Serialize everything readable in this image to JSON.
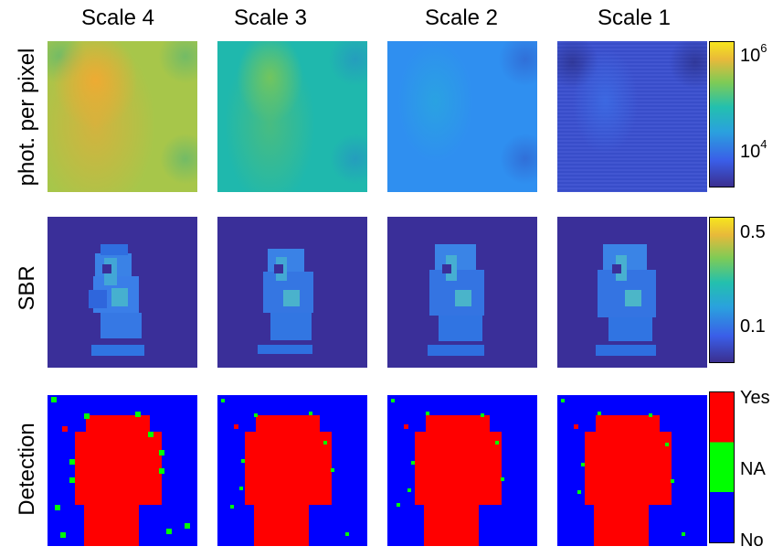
{
  "columns": [
    "Scale 4",
    "Scale 3",
    "Scale 2",
    "Scale 1"
  ],
  "rows": [
    "phot. per pixel",
    "SBR",
    "Detection"
  ],
  "colorbars": {
    "photons": {
      "scale": "log",
      "tick_top_base": "10",
      "tick_top_exp": "6",
      "tick_mid_base": "10",
      "tick_mid_exp": "4"
    },
    "sbr": {
      "tick_top": "0.5",
      "tick_bottom": "0.1"
    },
    "detection": {
      "categories": [
        "Yes",
        "NA",
        "No"
      ],
      "colors": [
        "#ff0000",
        "#00ff00",
        "#0000ff"
      ]
    }
  },
  "colors": {
    "photons_scale": [
      "#3b2f8f",
      "#3a5ee8",
      "#2aa1de",
      "#23c0ae",
      "#7ecb56",
      "#e8b93a",
      "#f7e51d"
    ],
    "sbr_background": "#3a2f99",
    "detection_bg": "#0000ff",
    "detection_fg": "#ff0000",
    "detection_na": "#00ff00"
  }
}
